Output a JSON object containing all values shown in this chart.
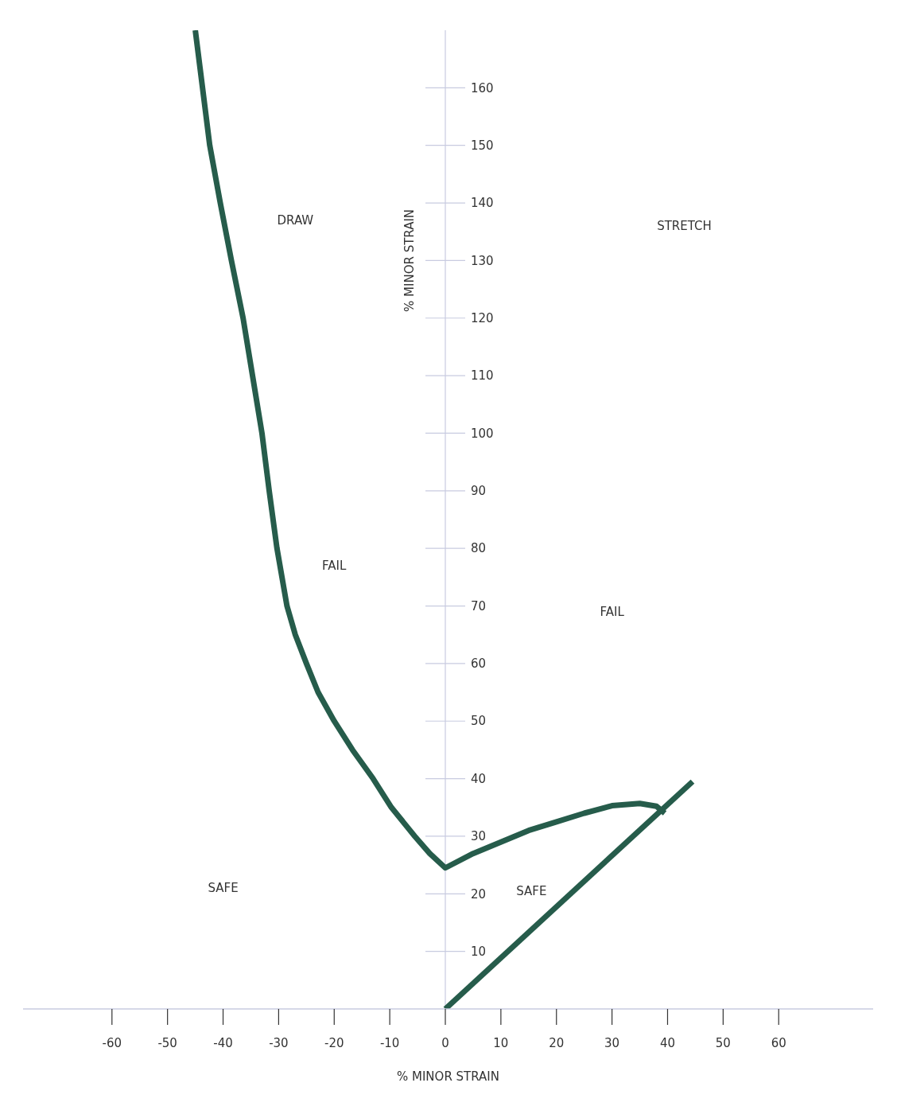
{
  "chart_data": {
    "type": "line",
    "xlabel": "% MINOR STRAIN",
    "ylabel": "% MINOR STRAIN",
    "xlim": [
      -76,
      77
    ],
    "ylim": [
      0,
      170
    ],
    "xticks": [
      -60,
      -50,
      -40,
      -30,
      -20,
      -10,
      0,
      10,
      20,
      30,
      40,
      50,
      60
    ],
    "yticks": [
      10,
      20,
      30,
      40,
      50,
      60,
      70,
      80,
      90,
      100,
      110,
      120,
      130,
      140,
      150,
      160
    ],
    "grid": false,
    "legend": false,
    "marker": "none",
    "line_style": "solid",
    "series": [
      {
        "color": "#265c4b",
        "x": [
          -45,
          -42.4,
          -40.5,
          -38.5,
          -36.4,
          -34.7,
          -33,
          -31.7,
          -30.3,
          -28.5,
          -27,
          -25,
          -22.9,
          -20,
          -16.7,
          -13,
          -9.7,
          -5.5,
          -2.8,
          0,
          5,
          10,
          15,
          20,
          25,
          30,
          35,
          38,
          39.5
        ],
        "values": [
          170,
          150,
          140,
          130,
          120,
          110,
          100,
          90,
          80,
          70,
          65,
          60,
          55,
          50,
          45,
          40,
          35,
          30,
          27,
          24.5,
          27,
          29,
          31,
          32.5,
          34,
          35.3,
          35.7,
          35.2,
          34
        ]
      },
      {
        "color": "#265c4b",
        "x": [
          0,
          44.5
        ],
        "values": [
          0,
          39.5
        ]
      }
    ],
    "annotations": [
      "DRAW",
      "STRETCH",
      "FAIL",
      "FAIL",
      "SAFE",
      "SAFE"
    ]
  }
}
